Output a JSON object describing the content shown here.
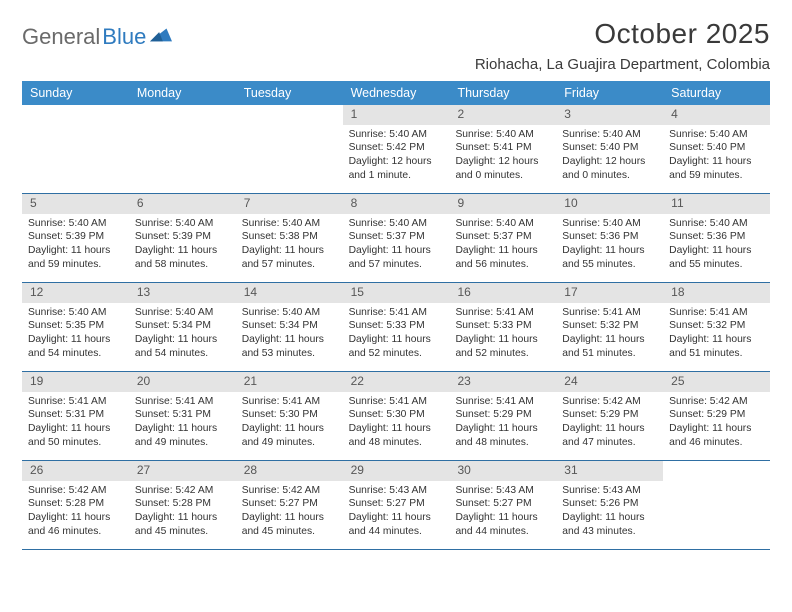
{
  "logo": {
    "text1": "General",
    "text2": "Blue"
  },
  "title": "October 2025",
  "location": "Riohacha, La Guajira Department, Colombia",
  "colors": {
    "header_bg": "#3b8bc8",
    "daynum_bg": "#e4e4e4",
    "week_border": "#2f6fa3",
    "logo_gray": "#6a6a6a",
    "logo_blue": "#2f7bbf"
  },
  "weekdays": [
    "Sunday",
    "Monday",
    "Tuesday",
    "Wednesday",
    "Thursday",
    "Friday",
    "Saturday"
  ],
  "weeks": [
    [
      {
        "n": "",
        "sr": "",
        "ss": "",
        "dl": ""
      },
      {
        "n": "",
        "sr": "",
        "ss": "",
        "dl": ""
      },
      {
        "n": "",
        "sr": "",
        "ss": "",
        "dl": ""
      },
      {
        "n": "1",
        "sr": "Sunrise: 5:40 AM",
        "ss": "Sunset: 5:42 PM",
        "dl": "Daylight: 12 hours and 1 minute."
      },
      {
        "n": "2",
        "sr": "Sunrise: 5:40 AM",
        "ss": "Sunset: 5:41 PM",
        "dl": "Daylight: 12 hours and 0 minutes."
      },
      {
        "n": "3",
        "sr": "Sunrise: 5:40 AM",
        "ss": "Sunset: 5:40 PM",
        "dl": "Daylight: 12 hours and 0 minutes."
      },
      {
        "n": "4",
        "sr": "Sunrise: 5:40 AM",
        "ss": "Sunset: 5:40 PM",
        "dl": "Daylight: 11 hours and 59 minutes."
      }
    ],
    [
      {
        "n": "5",
        "sr": "Sunrise: 5:40 AM",
        "ss": "Sunset: 5:39 PM",
        "dl": "Daylight: 11 hours and 59 minutes."
      },
      {
        "n": "6",
        "sr": "Sunrise: 5:40 AM",
        "ss": "Sunset: 5:39 PM",
        "dl": "Daylight: 11 hours and 58 minutes."
      },
      {
        "n": "7",
        "sr": "Sunrise: 5:40 AM",
        "ss": "Sunset: 5:38 PM",
        "dl": "Daylight: 11 hours and 57 minutes."
      },
      {
        "n": "8",
        "sr": "Sunrise: 5:40 AM",
        "ss": "Sunset: 5:37 PM",
        "dl": "Daylight: 11 hours and 57 minutes."
      },
      {
        "n": "9",
        "sr": "Sunrise: 5:40 AM",
        "ss": "Sunset: 5:37 PM",
        "dl": "Daylight: 11 hours and 56 minutes."
      },
      {
        "n": "10",
        "sr": "Sunrise: 5:40 AM",
        "ss": "Sunset: 5:36 PM",
        "dl": "Daylight: 11 hours and 55 minutes."
      },
      {
        "n": "11",
        "sr": "Sunrise: 5:40 AM",
        "ss": "Sunset: 5:36 PM",
        "dl": "Daylight: 11 hours and 55 minutes."
      }
    ],
    [
      {
        "n": "12",
        "sr": "Sunrise: 5:40 AM",
        "ss": "Sunset: 5:35 PM",
        "dl": "Daylight: 11 hours and 54 minutes."
      },
      {
        "n": "13",
        "sr": "Sunrise: 5:40 AM",
        "ss": "Sunset: 5:34 PM",
        "dl": "Daylight: 11 hours and 54 minutes."
      },
      {
        "n": "14",
        "sr": "Sunrise: 5:40 AM",
        "ss": "Sunset: 5:34 PM",
        "dl": "Daylight: 11 hours and 53 minutes."
      },
      {
        "n": "15",
        "sr": "Sunrise: 5:41 AM",
        "ss": "Sunset: 5:33 PM",
        "dl": "Daylight: 11 hours and 52 minutes."
      },
      {
        "n": "16",
        "sr": "Sunrise: 5:41 AM",
        "ss": "Sunset: 5:33 PM",
        "dl": "Daylight: 11 hours and 52 minutes."
      },
      {
        "n": "17",
        "sr": "Sunrise: 5:41 AM",
        "ss": "Sunset: 5:32 PM",
        "dl": "Daylight: 11 hours and 51 minutes."
      },
      {
        "n": "18",
        "sr": "Sunrise: 5:41 AM",
        "ss": "Sunset: 5:32 PM",
        "dl": "Daylight: 11 hours and 51 minutes."
      }
    ],
    [
      {
        "n": "19",
        "sr": "Sunrise: 5:41 AM",
        "ss": "Sunset: 5:31 PM",
        "dl": "Daylight: 11 hours and 50 minutes."
      },
      {
        "n": "20",
        "sr": "Sunrise: 5:41 AM",
        "ss": "Sunset: 5:31 PM",
        "dl": "Daylight: 11 hours and 49 minutes."
      },
      {
        "n": "21",
        "sr": "Sunrise: 5:41 AM",
        "ss": "Sunset: 5:30 PM",
        "dl": "Daylight: 11 hours and 49 minutes."
      },
      {
        "n": "22",
        "sr": "Sunrise: 5:41 AM",
        "ss": "Sunset: 5:30 PM",
        "dl": "Daylight: 11 hours and 48 minutes."
      },
      {
        "n": "23",
        "sr": "Sunrise: 5:41 AM",
        "ss": "Sunset: 5:29 PM",
        "dl": "Daylight: 11 hours and 48 minutes."
      },
      {
        "n": "24",
        "sr": "Sunrise: 5:42 AM",
        "ss": "Sunset: 5:29 PM",
        "dl": "Daylight: 11 hours and 47 minutes."
      },
      {
        "n": "25",
        "sr": "Sunrise: 5:42 AM",
        "ss": "Sunset: 5:29 PM",
        "dl": "Daylight: 11 hours and 46 minutes."
      }
    ],
    [
      {
        "n": "26",
        "sr": "Sunrise: 5:42 AM",
        "ss": "Sunset: 5:28 PM",
        "dl": "Daylight: 11 hours and 46 minutes."
      },
      {
        "n": "27",
        "sr": "Sunrise: 5:42 AM",
        "ss": "Sunset: 5:28 PM",
        "dl": "Daylight: 11 hours and 45 minutes."
      },
      {
        "n": "28",
        "sr": "Sunrise: 5:42 AM",
        "ss": "Sunset: 5:27 PM",
        "dl": "Daylight: 11 hours and 45 minutes."
      },
      {
        "n": "29",
        "sr": "Sunrise: 5:43 AM",
        "ss": "Sunset: 5:27 PM",
        "dl": "Daylight: 11 hours and 44 minutes."
      },
      {
        "n": "30",
        "sr": "Sunrise: 5:43 AM",
        "ss": "Sunset: 5:27 PM",
        "dl": "Daylight: 11 hours and 44 minutes."
      },
      {
        "n": "31",
        "sr": "Sunrise: 5:43 AM",
        "ss": "Sunset: 5:26 PM",
        "dl": "Daylight: 11 hours and 43 minutes."
      },
      {
        "n": "",
        "sr": "",
        "ss": "",
        "dl": ""
      }
    ]
  ]
}
